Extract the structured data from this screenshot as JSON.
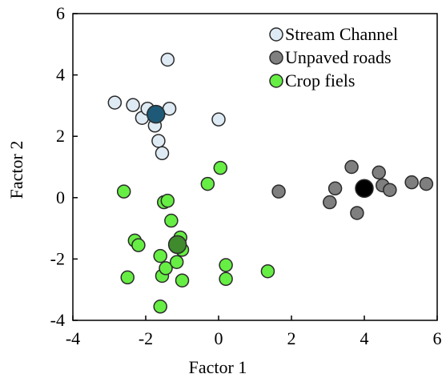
{
  "chart_data": {
    "type": "scatter",
    "title": "",
    "xlabel": "Factor 1",
    "ylabel": "Factor 2",
    "xlim": [
      -4,
      6
    ],
    "ylim": [
      -4,
      6
    ],
    "xticks": [
      -4,
      -2,
      0,
      2,
      4,
      6
    ],
    "yticks": [
      -4,
      -2,
      0,
      2,
      4,
      6
    ],
    "grid": false,
    "legend_position": "top-right",
    "series": [
      {
        "name": "Stream Channel",
        "color": "#dfebf4",
        "points": [
          [
            -2.85,
            3.1
          ],
          [
            -2.35,
            3.02
          ],
          [
            -2.1,
            2.6
          ],
          [
            -1.95,
            2.9
          ],
          [
            -1.75,
            2.35
          ],
          [
            -1.65,
            1.85
          ],
          [
            -1.55,
            1.45
          ],
          [
            -1.4,
            4.5
          ],
          [
            -1.35,
            2.9
          ],
          [
            0.0,
            2.55
          ]
        ],
        "centroid": [
          -1.72,
          2.72
        ],
        "centroid_color": "#1e5a78"
      },
      {
        "name": "Unpaved roads",
        "color": "#7f7f7f",
        "points": [
          [
            1.65,
            0.2
          ],
          [
            3.05,
            -0.15
          ],
          [
            3.2,
            0.3
          ],
          [
            3.65,
            1.0
          ],
          [
            3.8,
            -0.5
          ],
          [
            4.4,
            0.82
          ],
          [
            4.5,
            0.4
          ],
          [
            4.7,
            0.25
          ],
          [
            5.3,
            0.5
          ],
          [
            5.7,
            0.45
          ]
        ],
        "centroid": [
          4.0,
          0.3
        ],
        "centroid_color": "#000000"
      },
      {
        "name": "Crop fiels",
        "color": "#66ee44",
        "points": [
          [
            -2.6,
            0.2
          ],
          [
            -2.5,
            -2.6
          ],
          [
            -2.3,
            -1.4
          ],
          [
            -2.2,
            -1.55
          ],
          [
            -1.6,
            -3.55
          ],
          [
            -1.6,
            -1.9
          ],
          [
            -1.55,
            -2.55
          ],
          [
            -1.5,
            -0.15
          ],
          [
            -1.45,
            -2.3
          ],
          [
            -1.4,
            -0.1
          ],
          [
            -1.3,
            -0.75
          ],
          [
            -1.15,
            -2.1
          ],
          [
            -1.05,
            -1.3
          ],
          [
            -1.0,
            -1.7
          ],
          [
            -1.0,
            -2.7
          ],
          [
            -0.3,
            0.45
          ],
          [
            0.05,
            0.97
          ],
          [
            0.2,
            -2.65
          ],
          [
            0.2,
            -2.2
          ],
          [
            1.35,
            -2.4
          ]
        ],
        "centroid": [
          -1.13,
          -1.53
        ],
        "centroid_color": "#3e8a2c"
      }
    ]
  }
}
